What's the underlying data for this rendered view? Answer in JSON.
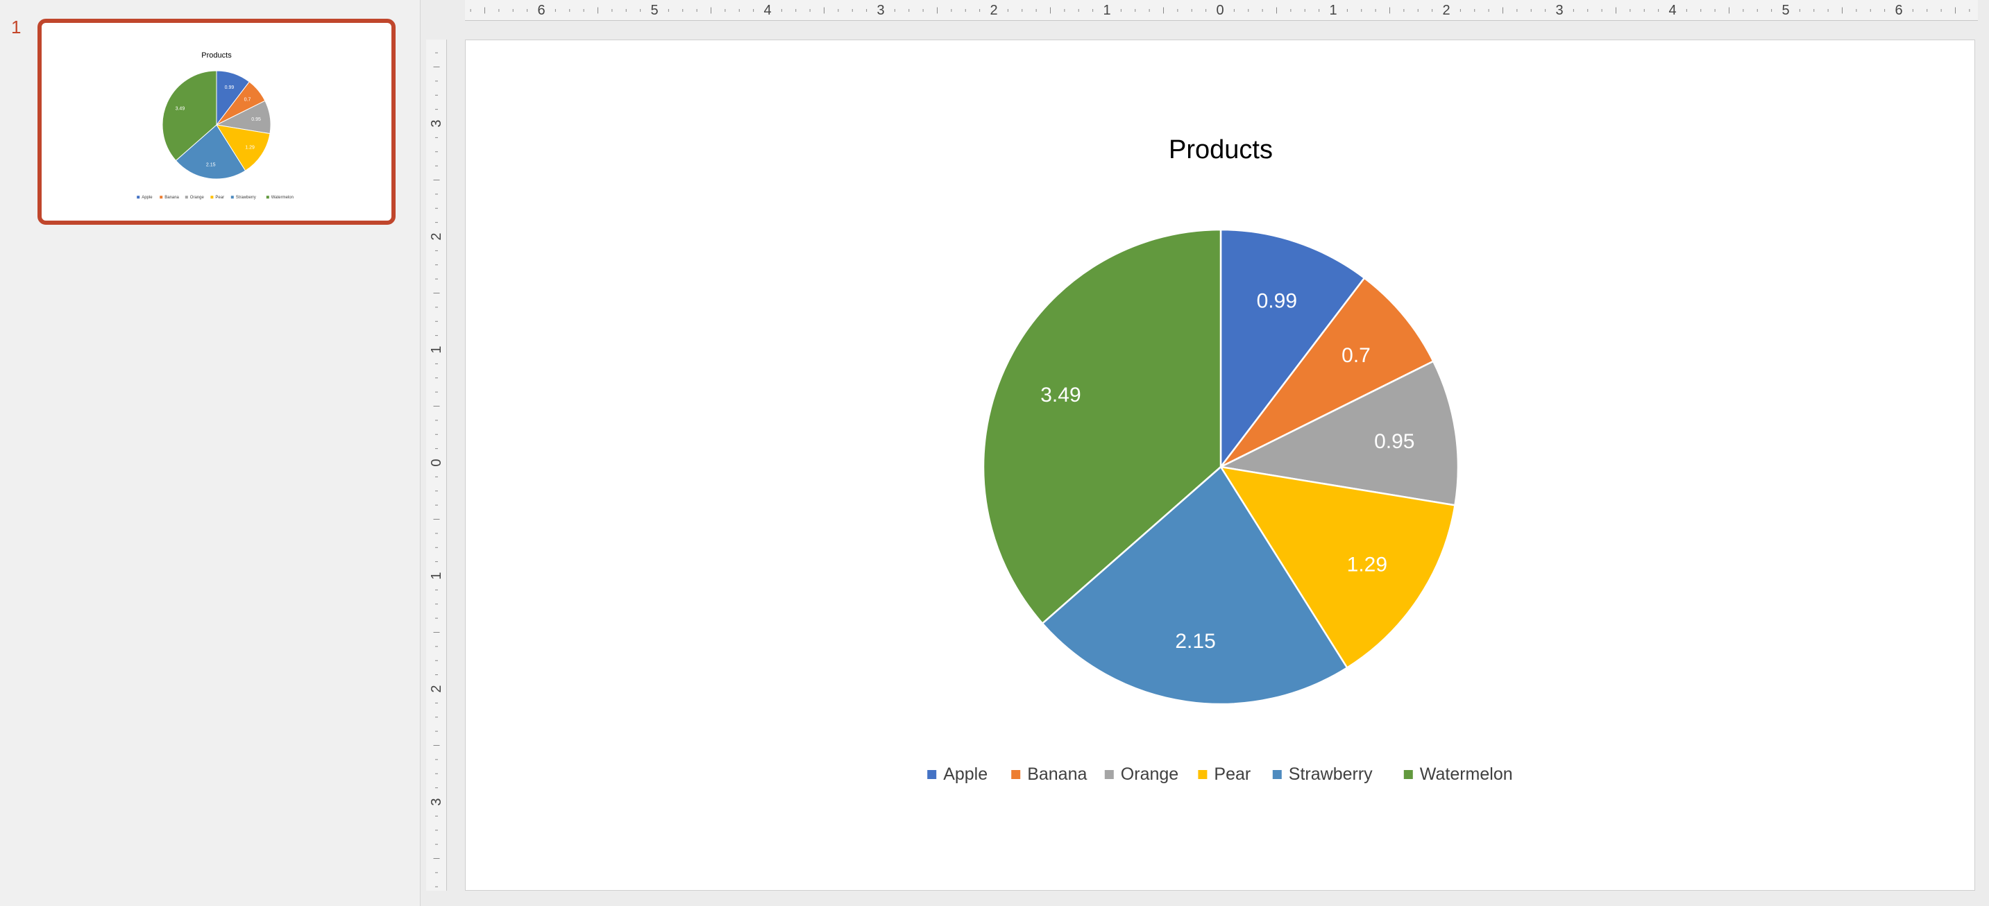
{
  "thumbnail": {
    "slide_number": "1",
    "title": "Products"
  },
  "rulers": {
    "horizontal_labels": [
      "6",
      "5",
      "4",
      "3",
      "2",
      "1",
      "0",
      "1",
      "2",
      "3",
      "4",
      "5",
      "6"
    ],
    "vertical_labels": [
      "3",
      "2",
      "1",
      "0",
      "1",
      "2",
      "3"
    ]
  },
  "chart_data": {
    "type": "pie",
    "title": "Products",
    "categories": [
      "Apple",
      "Banana",
      "Orange",
      "Pear",
      "Strawberry",
      "Watermelon"
    ],
    "values": [
      0.99,
      0.7,
      0.95,
      1.29,
      2.15,
      3.49
    ],
    "colors": [
      "#4472C4",
      "#ED7D31",
      "#A5A5A5",
      "#FFC000",
      "#4E8BBF",
      "#62993E"
    ],
    "data_labels": [
      "0.99",
      "0.7",
      "0.95",
      "1.29",
      "2.15",
      "3.49"
    ],
    "legend_position": "bottom",
    "label_color": "#FFFFFF"
  }
}
